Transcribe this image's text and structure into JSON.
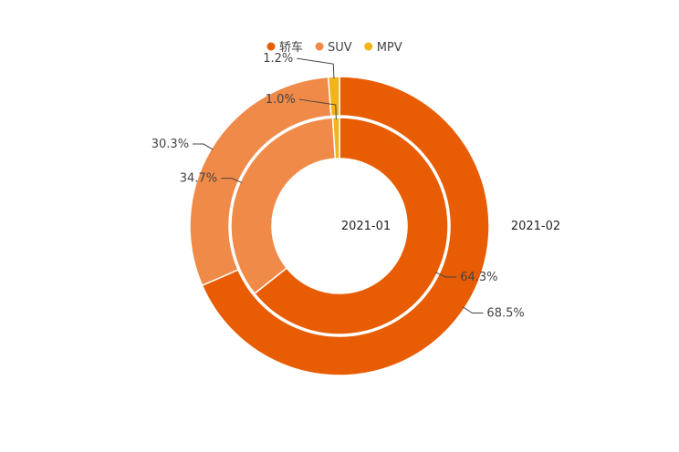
{
  "chart_data": {
    "type": "pie",
    "subtype": "nested-donut",
    "legend_position": "top",
    "legend": [
      {
        "name": "轿车",
        "color": "#e85d04"
      },
      {
        "name": "SUV",
        "color": "#f08a49"
      },
      {
        "name": "MPV",
        "color": "#f2b418"
      }
    ],
    "rings": [
      {
        "name": "2021-01",
        "position": "inner",
        "slices": [
          {
            "category": "轿车",
            "value": 64.3,
            "label": "64.3%"
          },
          {
            "category": "SUV",
            "value": 34.7,
            "label": "34.7%"
          },
          {
            "category": "MPV",
            "value": 1.0,
            "label": "1.0%"
          }
        ]
      },
      {
        "name": "2021-02",
        "position": "outer",
        "slices": [
          {
            "category": "轿车",
            "value": 68.5,
            "label": "68.5%"
          },
          {
            "category": "SUV",
            "value": 30.3,
            "label": "30.3%"
          },
          {
            "category": "MPV",
            "value": 1.2,
            "label": "1.2%"
          }
        ]
      }
    ]
  }
}
